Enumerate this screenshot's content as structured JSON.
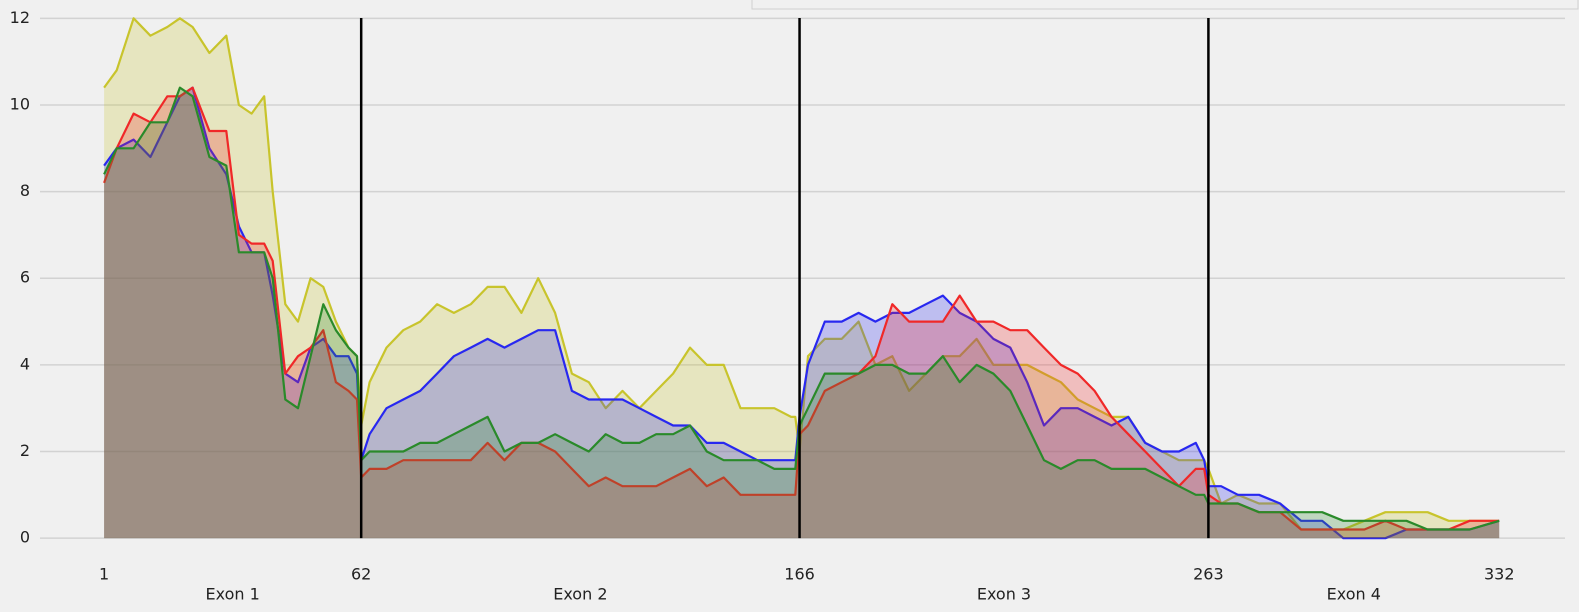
{
  "chart_data": {
    "type": "area",
    "x": [
      1,
      4,
      8,
      12,
      16,
      19,
      22,
      26,
      30,
      33,
      36,
      39,
      41,
      44,
      47,
      50,
      53,
      56,
      59,
      61,
      62,
      64,
      68,
      72,
      76,
      80,
      84,
      88,
      92,
      96,
      100,
      104,
      108,
      112,
      116,
      120,
      124,
      128,
      132,
      136,
      140,
      144,
      148,
      152,
      156,
      160,
      164,
      165,
      166,
      168,
      172,
      176,
      180,
      184,
      188,
      192,
      196,
      200,
      204,
      208,
      212,
      216,
      220,
      224,
      228,
      232,
      236,
      240,
      244,
      248,
      252,
      256,
      260,
      262,
      263,
      266,
      270,
      275,
      280,
      285,
      290,
      295,
      300,
      305,
      310,
      315,
      320,
      325,
      332
    ],
    "series": [
      {
        "color": "#c8c42c",
        "values": [
          10.4,
          10.8,
          12.0,
          11.6,
          11.8,
          12.0,
          11.8,
          11.2,
          11.6,
          10.0,
          9.8,
          10.2,
          8.0,
          5.4,
          5.0,
          6.0,
          5.8,
          5.0,
          4.4,
          4.2,
          2.6,
          3.6,
          4.4,
          4.8,
          5.0,
          5.4,
          5.2,
          5.4,
          5.8,
          5.8,
          5.2,
          6.0,
          5.2,
          3.8,
          3.6,
          3.0,
          3.4,
          3.0,
          3.4,
          3.8,
          4.4,
          4.0,
          4.0,
          3.0,
          3.0,
          3.0,
          2.8,
          2.8,
          2.0,
          4.2,
          4.6,
          4.6,
          5.0,
          4.0,
          4.2,
          3.4,
          3.8,
          4.2,
          4.2,
          4.6,
          4.0,
          4.0,
          4.0,
          3.8,
          3.6,
          3.2,
          3.0,
          2.8,
          2.8,
          2.2,
          2.0,
          1.8,
          1.8,
          1.8,
          1.6,
          0.8,
          1.0,
          0.8,
          0.8,
          0.2,
          0.2,
          0.2,
          0.4,
          0.6,
          0.6,
          0.6,
          0.4,
          0.4,
          0.4
        ]
      },
      {
        "color": "#2828f0",
        "values": [
          8.6,
          9.0,
          9.2,
          8.8,
          9.6,
          10.2,
          10.4,
          9.0,
          8.4,
          7.2,
          6.6,
          6.6,
          5.6,
          3.8,
          3.6,
          4.4,
          4.6,
          4.2,
          4.2,
          3.8,
          1.8,
          2.4,
          3.0,
          3.2,
          3.4,
          3.8,
          4.2,
          4.4,
          4.6,
          4.4,
          4.6,
          4.8,
          4.8,
          3.4,
          3.2,
          3.2,
          3.2,
          3.0,
          2.8,
          2.6,
          2.6,
          2.2,
          2.2,
          2.0,
          1.8,
          1.8,
          1.8,
          1.8,
          2.8,
          4.0,
          5.0,
          5.0,
          5.2,
          5.0,
          5.2,
          5.2,
          5.4,
          5.6,
          5.2,
          5.0,
          4.6,
          4.4,
          3.6,
          2.6,
          3.0,
          3.0,
          2.8,
          2.6,
          2.8,
          2.2,
          2.0,
          2.0,
          2.2,
          1.8,
          1.2,
          1.2,
          1.0,
          1.0,
          0.8,
          0.4,
          0.4,
          0.0,
          0.0,
          0.0,
          0.2,
          0.2,
          0.2,
          0.2,
          0.4
        ]
      },
      {
        "color": "#f02828",
        "values": [
          8.2,
          9.0,
          9.8,
          9.6,
          10.2,
          10.2,
          10.4,
          9.4,
          9.4,
          7.0,
          6.8,
          6.8,
          6.4,
          3.8,
          4.2,
          4.4,
          4.8,
          3.6,
          3.4,
          3.2,
          1.4,
          1.6,
          1.6,
          1.8,
          1.8,
          1.8,
          1.8,
          1.8,
          2.2,
          1.8,
          2.2,
          2.2,
          2.0,
          1.6,
          1.2,
          1.4,
          1.2,
          1.2,
          1.2,
          1.4,
          1.6,
          1.2,
          1.4,
          1.0,
          1.0,
          1.0,
          1.0,
          1.0,
          2.4,
          2.6,
          3.4,
          3.6,
          3.8,
          4.2,
          5.4,
          5.0,
          5.0,
          5.0,
          5.6,
          5.0,
          5.0,
          4.8,
          4.8,
          4.4,
          4.0,
          3.8,
          3.4,
          2.8,
          2.4,
          2.0,
          1.6,
          1.2,
          1.6,
          1.6,
          1.0,
          0.8,
          0.8,
          0.6,
          0.6,
          0.2,
          0.2,
          0.2,
          0.2,
          0.4,
          0.2,
          0.2,
          0.2,
          0.4,
          0.4
        ]
      },
      {
        "color": "#2a8a2a",
        "values": [
          8.4,
          9.0,
          9.0,
          9.6,
          9.6,
          10.4,
          10.2,
          8.8,
          8.6,
          6.6,
          6.6,
          6.6,
          6.0,
          3.2,
          3.0,
          4.2,
          5.4,
          4.8,
          4.4,
          4.2,
          1.8,
          2.0,
          2.0,
          2.0,
          2.2,
          2.2,
          2.4,
          2.6,
          2.8,
          2.0,
          2.2,
          2.2,
          2.4,
          2.2,
          2.0,
          2.4,
          2.2,
          2.2,
          2.4,
          2.4,
          2.6,
          2.0,
          1.8,
          1.8,
          1.8,
          1.6,
          1.6,
          1.6,
          2.6,
          3.0,
          3.8,
          3.8,
          3.8,
          4.0,
          4.0,
          3.8,
          3.8,
          4.2,
          3.6,
          4.0,
          3.8,
          3.4,
          2.6,
          1.8,
          1.6,
          1.8,
          1.8,
          1.6,
          1.6,
          1.6,
          1.4,
          1.2,
          1.0,
          1.0,
          0.8,
          0.8,
          0.8,
          0.6,
          0.6,
          0.6,
          0.6,
          0.4,
          0.4,
          0.4,
          0.4,
          0.2,
          0.2,
          0.2,
          0.4
        ]
      }
    ],
    "xlim": [
      -14.2,
      347.6
    ],
    "xticks": [
      1,
      62,
      166,
      263,
      332
    ],
    "ylim": [
      -0.25,
      12.4
    ],
    "yticks": [
      0,
      2,
      4,
      6,
      8,
      10,
      12
    ],
    "regions": [
      "Exon 1",
      "Exon 2",
      "Exon 3",
      "Exon 4"
    ],
    "grid": true
  }
}
